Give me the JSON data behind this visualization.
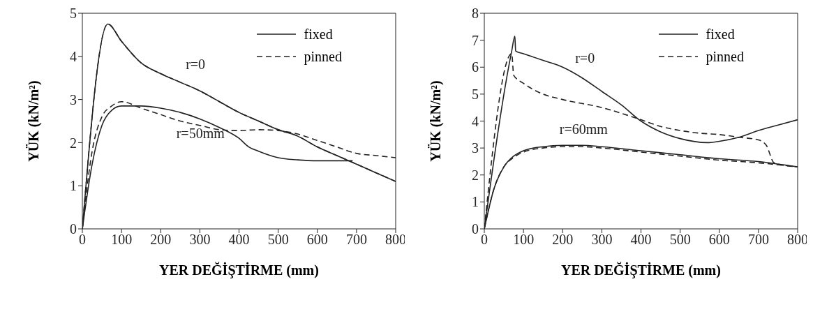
{
  "chart_data": [
    {
      "type": "line",
      "xlabel": "YER DEĞİŞTİRME (mm)",
      "ylabel": "YÜK (kN/m²)",
      "xlim": [
        0,
        800
      ],
      "xticks": [
        0,
        100,
        200,
        300,
        400,
        500,
        600,
        700,
        800
      ],
      "ylim": [
        0,
        5
      ],
      "yticks": [
        0,
        1,
        2,
        3,
        4,
        5
      ],
      "grid": false,
      "legend": "top right",
      "marker": "none",
      "annotations": [
        "r=0",
        "r=50mm"
      ],
      "series": [
        {
          "name": "fixed",
          "color": "#222222",
          "line_style": "solid",
          "x": [
            0,
            65,
            100,
            150,
            200,
            250,
            300,
            350,
            400,
            450,
            500,
            550,
            600,
            650,
            700,
            750,
            800
          ],
          "values": [
            0,
            4.75,
            4.35,
            3.85,
            3.6,
            3.4,
            3.2,
            2.95,
            2.7,
            2.5,
            2.3,
            2.15,
            1.9,
            1.7,
            1.5,
            1.3,
            1.1
          ]
        },
        {
          "name": "pinned",
          "color": "#222222",
          "line_style": "dashed",
          "x": [
            0,
            65,
            100,
            150,
            200,
            250,
            300,
            350,
            400,
            450,
            500,
            550,
            600,
            650,
            700,
            750,
            800
          ],
          "values": [
            0,
            4.75,
            4.35,
            3.85,
            3.6,
            3.4,
            3.2,
            2.95,
            2.7,
            2.5,
            2.3,
            2.15,
            1.9,
            1.7,
            1.5,
            1.3,
            1.1
          ]
        },
        {
          "color": "#222222",
          "line_style": "solid",
          "x": [
            0,
            25,
            50,
            75,
            100,
            150,
            200,
            250,
            300,
            350,
            400,
            425,
            450,
            500,
            550,
            600,
            690
          ],
          "values": [
            0,
            1.5,
            2.4,
            2.75,
            2.85,
            2.85,
            2.8,
            2.7,
            2.55,
            2.35,
            2.1,
            1.9,
            1.8,
            1.65,
            1.6,
            1.58,
            1.58
          ]
        },
        {
          "color": "#222222",
          "line_style": "dashed",
          "x": [
            0,
            25,
            50,
            75,
            100,
            150,
            200,
            250,
            300,
            350,
            400,
            450,
            500,
            550,
            600,
            650,
            700,
            750,
            800
          ],
          "values": [
            0,
            1.8,
            2.6,
            2.85,
            2.95,
            2.8,
            2.65,
            2.5,
            2.4,
            2.3,
            2.28,
            2.3,
            2.28,
            2.2,
            2.05,
            1.9,
            1.75,
            1.7,
            1.65
          ]
        }
      ]
    },
    {
      "type": "line",
      "xlabel": "YER DEĞİŞTİRME (mm)",
      "ylabel": "YÜK (kN/m²)",
      "xlim": [
        0,
        800
      ],
      "xticks": [
        0,
        100,
        200,
        300,
        400,
        500,
        600,
        700,
        800
      ],
      "ylim": [
        0,
        8
      ],
      "yticks": [
        0,
        1,
        2,
        3,
        4,
        5,
        6,
        7,
        8
      ],
      "grid": false,
      "legend": "top right",
      "marker": "none",
      "annotations": [
        "r=0",
        "r=60mm"
      ],
      "series": [
        {
          "name": "fixed",
          "color": "#222222",
          "line_style": "solid",
          "x": [
            0,
            70,
            78,
            80,
            100,
            150,
            200,
            250,
            300,
            350,
            400,
            450,
            500,
            570,
            600,
            650,
            700,
            750,
            800
          ],
          "values": [
            0,
            6.6,
            7.15,
            6.6,
            6.5,
            6.25,
            6.0,
            5.6,
            5.1,
            4.6,
            4.0,
            3.6,
            3.35,
            3.2,
            3.25,
            3.4,
            3.65,
            3.85,
            4.05
          ]
        },
        {
          "name": "pinned",
          "color": "#222222",
          "line_style": "dashed",
          "x": [
            0,
            70,
            75,
            100,
            150,
            200,
            300,
            400,
            450,
            500,
            550,
            600,
            650,
            700,
            720,
            740,
            800
          ],
          "values": [
            0,
            6.5,
            5.7,
            5.4,
            5.0,
            4.8,
            4.5,
            4.05,
            3.8,
            3.65,
            3.55,
            3.5,
            3.4,
            3.3,
            3.1,
            2.45,
            2.3
          ]
        },
        {
          "color": "#222222",
          "line_style": "solid",
          "x": [
            0,
            25,
            50,
            75,
            100,
            150,
            200,
            250,
            300,
            400,
            500,
            600,
            700,
            800
          ],
          "values": [
            0,
            1.5,
            2.3,
            2.7,
            2.9,
            3.05,
            3.1,
            3.1,
            3.05,
            2.9,
            2.75,
            2.6,
            2.5,
            2.3
          ]
        },
        {
          "color": "#222222",
          "line_style": "dashed",
          "x": [
            0,
            25,
            50,
            75,
            100,
            150,
            200,
            250,
            300,
            400,
            500,
            600,
            700,
            800
          ],
          "values": [
            0,
            1.5,
            2.3,
            2.65,
            2.85,
            3.0,
            3.05,
            3.05,
            3.0,
            2.85,
            2.7,
            2.55,
            2.45,
            2.3
          ]
        }
      ]
    }
  ]
}
